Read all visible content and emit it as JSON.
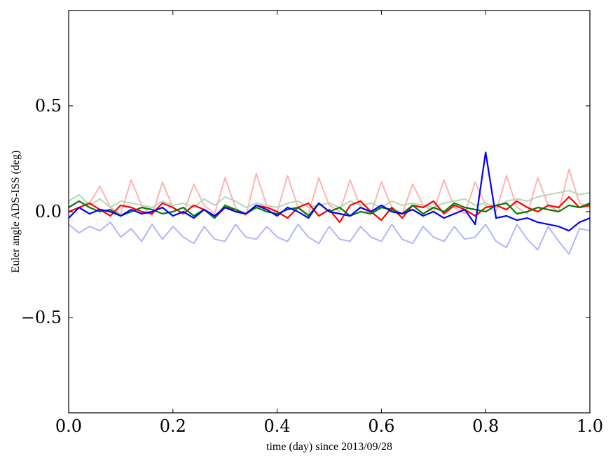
{
  "chart_data": {
    "type": "line",
    "xlabel": "time (day) since 2013/09/28",
    "ylabel": "Euler angle ADS-ISS (deg)",
    "xlim": [
      0.0,
      1.0
    ],
    "ylim": [
      -0.95,
      0.95
    ],
    "grid": false,
    "x_ticks": [
      "0.0",
      "0.2",
      "0.4",
      "0.6",
      "0.8",
      "1.0"
    ],
    "y_ticks": [
      "−0.5",
      "0.0",
      "0.5"
    ],
    "y_tick_values": [
      -0.5,
      0.0,
      0.5
    ],
    "x_tick_values": [
      0.0,
      0.2,
      0.4,
      0.6,
      0.8,
      1.0
    ],
    "x": [
      0.0,
      0.02,
      0.04,
      0.06,
      0.08,
      0.1,
      0.12,
      0.14,
      0.16,
      0.18,
      0.2,
      0.22,
      0.24,
      0.26,
      0.28,
      0.3,
      0.32,
      0.34,
      0.36,
      0.38,
      0.4,
      0.42,
      0.44,
      0.46,
      0.48,
      0.5,
      0.52,
      0.54,
      0.56,
      0.58,
      0.6,
      0.62,
      0.64,
      0.66,
      0.68,
      0.7,
      0.72,
      0.74,
      0.76,
      0.78,
      0.8,
      0.82,
      0.84,
      0.86,
      0.88,
      0.9,
      0.92,
      0.94,
      0.96,
      0.98,
      1.0
    ],
    "series": [
      {
        "color": "#ffb3b3",
        "values": [
          0.0,
          0.02,
          0.04,
          0.12,
          0.02,
          -0.01,
          0.15,
          0.03,
          -0.02,
          0.14,
          0.02,
          -0.01,
          0.13,
          0.03,
          -0.01,
          0.16,
          0.02,
          -0.02,
          0.18,
          0.03,
          0.0,
          0.17,
          0.02,
          -0.01,
          0.16,
          0.03,
          0.0,
          0.15,
          0.02,
          -0.01,
          0.14,
          0.02,
          -0.01,
          0.13,
          0.03,
          0.0,
          0.15,
          0.02,
          -0.01,
          0.14,
          0.03,
          0.0,
          0.17,
          0.02,
          -0.01,
          0.16,
          0.03,
          0.0,
          0.2,
          0.04,
          0.02
        ]
      },
      {
        "color": "#b3d9b3",
        "values": [
          0.05,
          0.08,
          0.03,
          0.06,
          0.02,
          0.05,
          0.04,
          0.03,
          0.02,
          0.05,
          0.03,
          0.04,
          0.02,
          0.06,
          0.03,
          0.07,
          0.05,
          0.02,
          0.04,
          0.03,
          0.02,
          0.04,
          0.05,
          0.02,
          0.03,
          0.04,
          0.02,
          0.05,
          0.03,
          0.04,
          0.02,
          0.05,
          0.03,
          0.04,
          0.03,
          0.02,
          0.04,
          0.05,
          0.06,
          0.03,
          0.04,
          0.02,
          0.05,
          0.06,
          0.05,
          0.07,
          0.08,
          0.09,
          0.1,
          0.08,
          0.09
        ]
      },
      {
        "color": "#b3b3ff",
        "values": [
          -0.06,
          -0.1,
          -0.07,
          -0.09,
          -0.05,
          -0.12,
          -0.08,
          -0.14,
          -0.06,
          -0.13,
          -0.07,
          -0.12,
          -0.15,
          -0.07,
          -0.13,
          -0.14,
          -0.06,
          -0.12,
          -0.13,
          -0.07,
          -0.12,
          -0.14,
          -0.06,
          -0.12,
          -0.15,
          -0.07,
          -0.13,
          -0.14,
          -0.07,
          -0.12,
          -0.14,
          -0.06,
          -0.13,
          -0.15,
          -0.07,
          -0.12,
          -0.14,
          -0.07,
          -0.13,
          -0.12,
          -0.06,
          -0.14,
          -0.17,
          -0.06,
          -0.13,
          -0.18,
          -0.07,
          -0.14,
          -0.2,
          -0.08,
          -0.09
        ]
      },
      {
        "color": "#ff0000",
        "values": [
          0.0,
          0.02,
          0.04,
          0.01,
          -0.02,
          0.03,
          0.02,
          0.0,
          -0.01,
          0.04,
          0.02,
          -0.01,
          0.03,
          0.01,
          -0.03,
          0.02,
          0.01,
          -0.01,
          0.03,
          0.02,
          0.0,
          -0.03,
          0.02,
          0.04,
          -0.02,
          0.01,
          -0.05,
          0.03,
          0.05,
          0.0,
          -0.04,
          0.02,
          -0.03,
          0.03,
          0.02,
          0.05,
          -0.01,
          0.03,
          0.01,
          -0.02,
          0.02,
          0.03,
          0.01,
          0.05,
          0.02,
          0.0,
          0.03,
          0.02,
          0.07,
          0.02,
          0.03
        ]
      },
      {
        "color": "#008000",
        "values": [
          0.02,
          0.05,
          0.02,
          0.0,
          0.01,
          -0.02,
          0.0,
          0.02,
          0.01,
          -0.01,
          0.0,
          0.02,
          -0.02,
          0.01,
          -0.03,
          0.03,
          0.01,
          -0.01,
          0.02,
          0.0,
          -0.01,
          0.01,
          0.02,
          -0.02,
          0.04,
          0.0,
          0.02,
          -0.02,
          0.0,
          -0.01,
          0.02,
          0.01,
          -0.01,
          0.03,
          -0.01,
          0.02,
          0.0,
          0.04,
          0.02,
          0.01,
          0.0,
          0.03,
          0.04,
          -0.01,
          0.0,
          0.02,
          0.01,
          0.0,
          0.03,
          0.02,
          0.04
        ]
      },
      {
        "color": "#0000ff",
        "values": [
          -0.03,
          0.02,
          -0.01,
          0.01,
          0.0,
          -0.02,
          0.01,
          -0.01,
          0.0,
          0.02,
          -0.02,
          0.0,
          -0.03,
          0.01,
          -0.02,
          0.02,
          0.0,
          -0.01,
          0.03,
          0.01,
          -0.02,
          0.02,
          0.0,
          -0.03,
          0.04,
          0.0,
          -0.01,
          -0.02,
          0.02,
          0.0,
          0.03,
          0.0,
          -0.01,
          0.01,
          -0.02,
          0.0,
          -0.03,
          -0.01,
          0.01,
          -0.06,
          0.28,
          -0.03,
          -0.02,
          -0.04,
          -0.03,
          -0.05,
          -0.06,
          -0.07,
          -0.09,
          -0.05,
          -0.03
        ]
      }
    ]
  }
}
